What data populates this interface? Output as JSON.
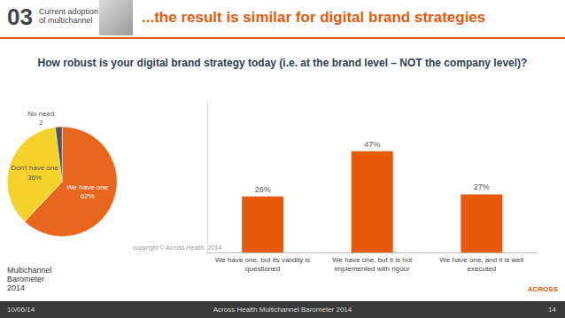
{
  "slide": {
    "section_number": "03",
    "section": "Current adoption of multichannel",
    "title": "...the result is similar for digital brand strategies",
    "question": "How robust is your digital brand strategy today (i.e. at the brand level – NOT the company level)?",
    "copyright": "copyright © Across Health, 2014",
    "logo": "Multichannel Barometer 2014",
    "brand": "ACROSS",
    "footer": {
      "date": "10/06/14",
      "source": "Across Health Multichannel Barometer 2014",
      "page": "14"
    }
  },
  "chart_data": [
    {
      "type": "pie",
      "categories": [
        "We have one",
        "Don't have one",
        "No need"
      ],
      "values": [
        62,
        36,
        2
      ],
      "value_labels": [
        "62%",
        "36%",
        "2"
      ],
      "colors": [
        "#e8651d",
        "#f4d22b",
        "#555555"
      ],
      "data_labels": true
    },
    {
      "type": "bar",
      "categories": [
        "We have one, but its validity is questioned",
        "We have one, but it is not implemented with rigour",
        "We have one, and it is well executed"
      ],
      "values": [
        26,
        47,
        27
      ],
      "value_labels": [
        "26%",
        "47%",
        "27%"
      ],
      "color": "#e8590c",
      "ylim": [
        0,
        70
      ],
      "yticks": [],
      "tick_labels": "x",
      "grid": false,
      "data_labels": true
    }
  ]
}
